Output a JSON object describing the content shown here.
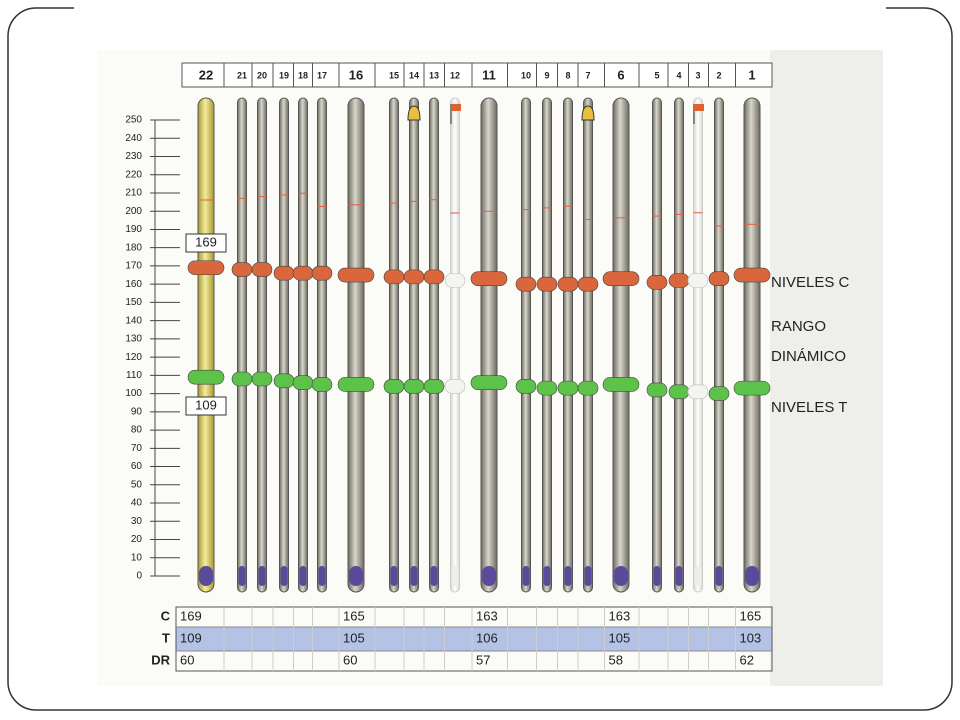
{
  "chart_data": {
    "type": "range",
    "categories": [
      "22",
      "21",
      "20",
      "19",
      "18",
      "17",
      "16",
      "15",
      "14",
      "13",
      "12",
      "11",
      "10",
      "9",
      "8",
      "7",
      "6",
      "5",
      "4",
      "3",
      "2",
      "1"
    ],
    "series": [
      {
        "name": "C",
        "color": "#d9663c",
        "values": [
          169,
          168,
          168,
          166,
          166,
          166,
          165,
          164,
          164,
          164,
          162,
          163,
          160,
          160,
          160,
          160,
          163,
          161,
          162,
          162,
          163,
          165
        ]
      },
      {
        "name": "T",
        "color": "#5cc24a",
        "values": [
          109,
          108,
          108,
          107,
          106,
          105,
          105,
          104,
          104,
          104,
          104,
          106,
          104,
          103,
          103,
          103,
          105,
          102,
          101,
          101,
          100,
          103
        ]
      }
    ],
    "ylim": [
      0,
      250
    ],
    "yticks": [
      0,
      10,
      20,
      30,
      40,
      50,
      60,
      70,
      80,
      90,
      100,
      110,
      120,
      130,
      140,
      150,
      160,
      170,
      180,
      190,
      200,
      210,
      220,
      230,
      240,
      250
    ],
    "disabled": [
      "12",
      "3"
    ],
    "bells": [
      "14",
      "7"
    ],
    "flags": [
      "12",
      "3"
    ],
    "annotations": [
      "NIVELES C",
      "RANGO",
      "DINÁMICO",
      "NIVELES T"
    ],
    "table": {
      "rows": [
        {
          "label": "C",
          "cells": [
            169,
            null,
            null,
            null,
            null,
            null,
            165,
            null,
            null,
            null,
            null,
            163,
            null,
            null,
            null,
            null,
            163,
            null,
            null,
            null,
            null,
            165
          ]
        },
        {
          "label": "T",
          "cells": [
            109,
            null,
            null,
            null,
            null,
            null,
            105,
            null,
            null,
            null,
            null,
            106,
            null,
            null,
            null,
            null,
            105,
            null,
            null,
            null,
            null,
            103
          ]
        },
        {
          "label": "DR",
          "cells": [
            60,
            null,
            null,
            null,
            null,
            null,
            60,
            null,
            null,
            null,
            null,
            57,
            null,
            null,
            null,
            null,
            58,
            null,
            null,
            null,
            null,
            62
          ]
        }
      ]
    }
  }
}
